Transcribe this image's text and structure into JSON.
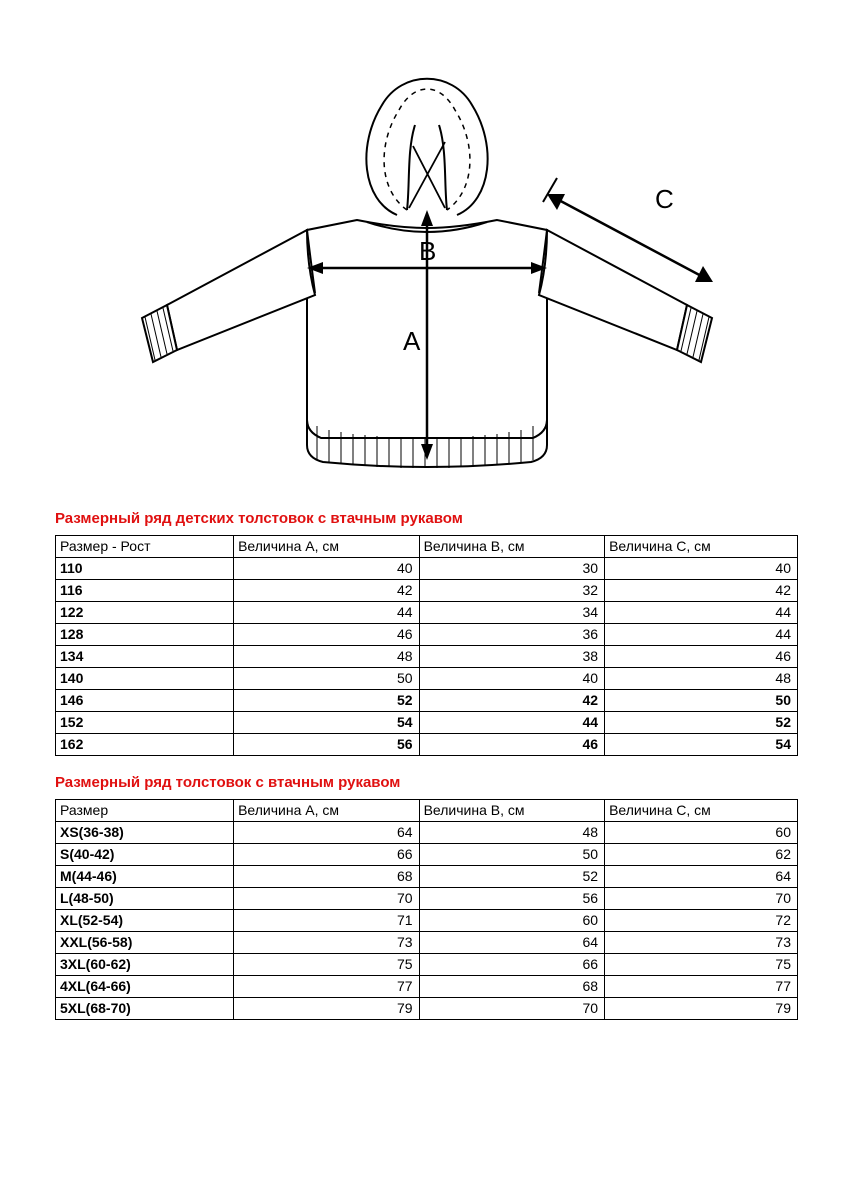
{
  "diagram": {
    "labels": {
      "A": "A",
      "B": "B",
      "C": "C"
    },
    "stroke": "#000000",
    "fill": "#ffffff",
    "cuff_fill": "#cfcfcf",
    "dash": "4,4"
  },
  "section1": {
    "title": "Размерный ряд детских толстовок с втачным рукавом",
    "title_color": "#e01010",
    "columns": [
      "Размер - Рост",
      "Величина А, см",
      "Величина В, см",
      "Величина С, см"
    ],
    "rows": [
      {
        "size": "110",
        "a": 40,
        "b": 30,
        "c": 40,
        "bold": false
      },
      {
        "size": "116",
        "a": 42,
        "b": 32,
        "c": 42,
        "bold": false
      },
      {
        "size": "122",
        "a": 44,
        "b": 34,
        "c": 44,
        "bold": false
      },
      {
        "size": "128",
        "a": 46,
        "b": 36,
        "c": 44,
        "bold": false
      },
      {
        "size": "134",
        "a": 48,
        "b": 38,
        "c": 46,
        "bold": false
      },
      {
        "size": "140",
        "a": 50,
        "b": 40,
        "c": 48,
        "bold": false
      },
      {
        "size": "146",
        "a": 52,
        "b": 42,
        "c": 50,
        "bold": true
      },
      {
        "size": "152",
        "a": 54,
        "b": 44,
        "c": 52,
        "bold": true
      },
      {
        "size": "162",
        "a": 56,
        "b": 46,
        "c": 54,
        "bold": true
      }
    ]
  },
  "section2": {
    "title": "Размерный ряд толстовок с втачным рукавом",
    "title_color": "#e01010",
    "columns": [
      "Размер",
      "Величина А, см",
      "Величина В, см",
      "Величина С, см"
    ],
    "rows": [
      {
        "size": "XS(36-38)",
        "a": 64,
        "b": 48,
        "c": 60
      },
      {
        "size": "S(40-42)",
        "a": 66,
        "b": 50,
        "c": 62
      },
      {
        "size": "M(44-46)",
        "a": 68,
        "b": 52,
        "c": 64
      },
      {
        "size": "L(48-50)",
        "a": 70,
        "b": 56,
        "c": 70
      },
      {
        "size": "XL(52-54)",
        "a": 71,
        "b": 60,
        "c": 72
      },
      {
        "size": "XXL(56-58)",
        "a": 73,
        "b": 64,
        "c": 73
      },
      {
        "size": "3XL(60-62)",
        "a": 75,
        "b": 66,
        "c": 75
      },
      {
        "size": "4XL(64-66)",
        "a": 77,
        "b": 68,
        "c": 77
      },
      {
        "size": "5XL(68-70)",
        "a": 79,
        "b": 70,
        "c": 79
      }
    ]
  }
}
